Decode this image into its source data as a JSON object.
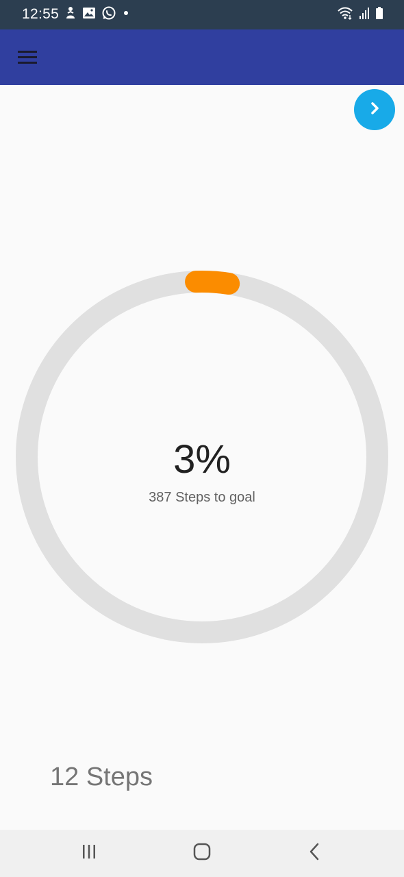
{
  "status_bar": {
    "time": "12:55",
    "left_icons": [
      "person-notification-icon",
      "gallery-icon",
      "whatsapp-icon",
      "dot-icon"
    ],
    "right_icons": [
      "wifi-icon",
      "signal-icon",
      "battery-icon"
    ]
  },
  "app_bar": {
    "menu_icon": "hamburger-menu-icon",
    "color": "#303f9f"
  },
  "next_button": {
    "icon": "chevron-right-icon",
    "color": "#18aae8"
  },
  "progress": {
    "percent_label": "3%",
    "fraction": 0.03,
    "subtitle": "387 Steps to goal",
    "track_color": "#e0e0e0",
    "fill_color": "#fb8c00"
  },
  "steps_label": "12 Steps",
  "nav_bar": {
    "recents_icon": "recents-icon",
    "home_icon": "home-icon",
    "back_icon": "back-icon"
  }
}
